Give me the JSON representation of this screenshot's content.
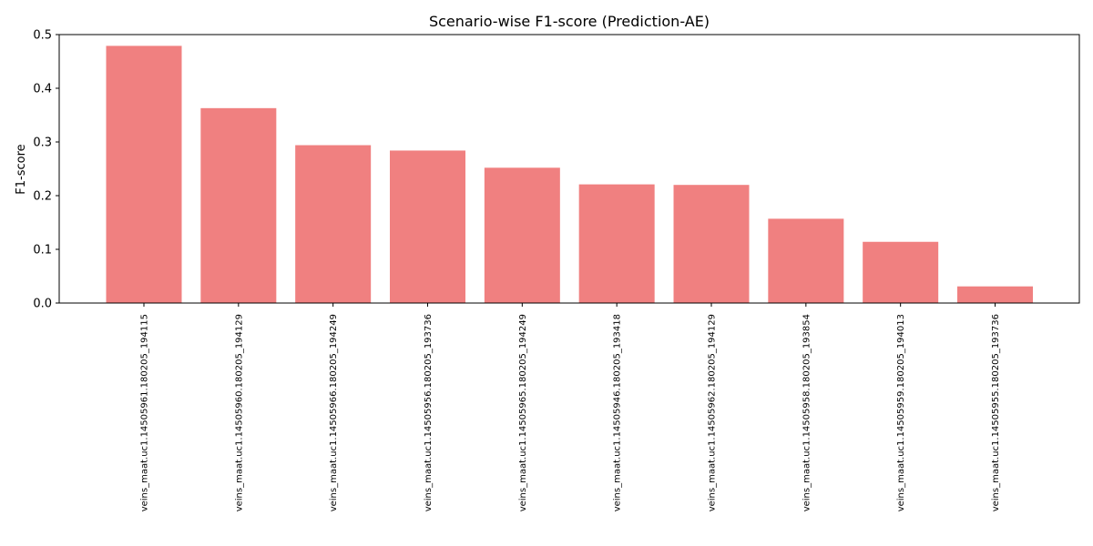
{
  "chart_data": {
    "type": "bar",
    "title": "Scenario-wise F1-score (Prediction-AE)",
    "xlabel": "",
    "ylabel": "F1-score",
    "ylim": [
      0,
      0.5
    ],
    "yticks": [
      "0.0",
      "0.1",
      "0.2",
      "0.3",
      "0.4",
      "0.5"
    ],
    "grid": false,
    "bar_color": "#f08080",
    "categories": [
      "veins_maat.uc1.14505961.180205_194115",
      "veins_maat.uc1.14505960.180205_194129",
      "veins_maat.uc1.14505966.180205_194249",
      "veins_maat.uc1.14505956.180205_193736",
      "veins_maat.uc1.14505965.180205_194249",
      "veins_maat.uc1.14505946.180205_193418",
      "veins_maat.uc1.14505962.180205_194129",
      "veins_maat.uc1.14505958.180205_193854",
      "veins_maat.uc1.14505959.180205_194013",
      "veins_maat.uc1.14505955.180205_193736"
    ],
    "values": [
      0.479,
      0.363,
      0.294,
      0.284,
      0.252,
      0.221,
      0.22,
      0.157,
      0.114,
      0.031
    ]
  }
}
